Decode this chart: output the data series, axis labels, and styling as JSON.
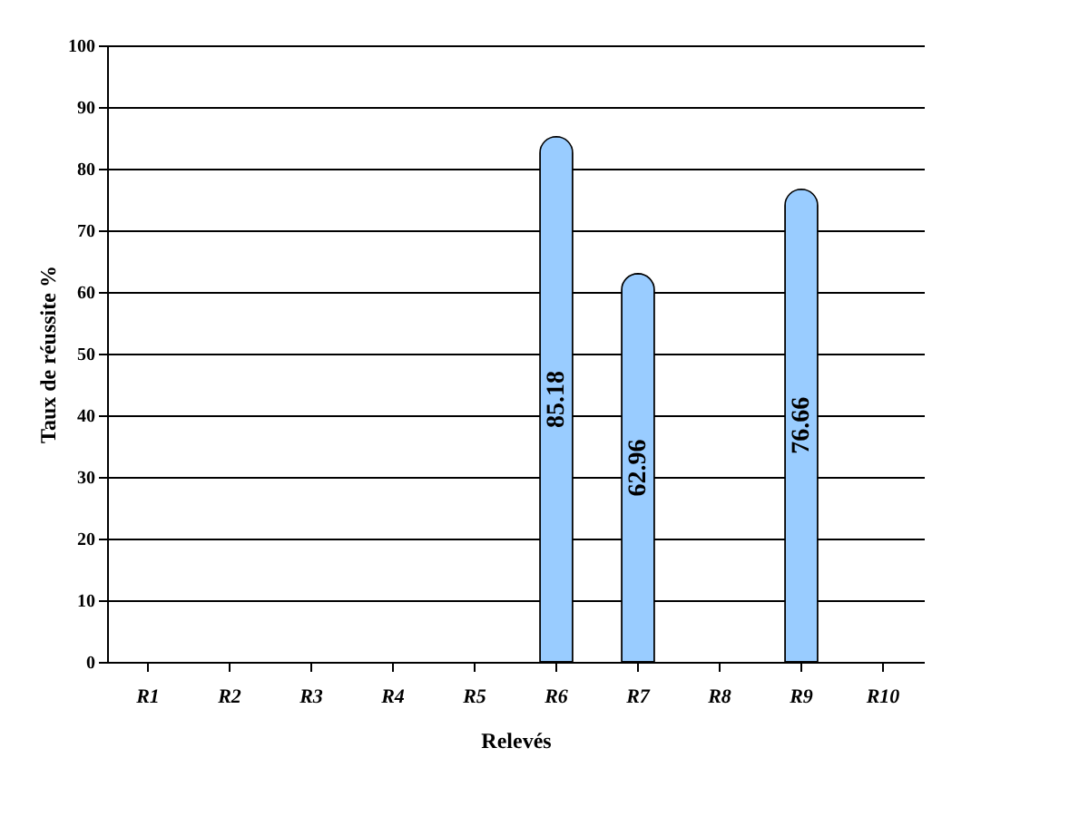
{
  "chart_data": {
    "type": "bar",
    "xlabel": "Relevés",
    "ylabel": "Taux de réussite %",
    "categories": [
      "R1",
      "R2",
      "R3",
      "R4",
      "R5",
      "R6",
      "R7",
      "R8",
      "R9",
      "R10"
    ],
    "values": [
      null,
      null,
      null,
      null,
      null,
      85.18,
      62.96,
      null,
      76.66,
      null
    ],
    "color": "#99ccff",
    "ylim": [
      0,
      100
    ],
    "yticks": [
      0,
      10,
      20,
      30,
      40,
      50,
      60,
      70,
      80,
      90,
      100
    ],
    "grid": "y",
    "data_labels": true
  }
}
